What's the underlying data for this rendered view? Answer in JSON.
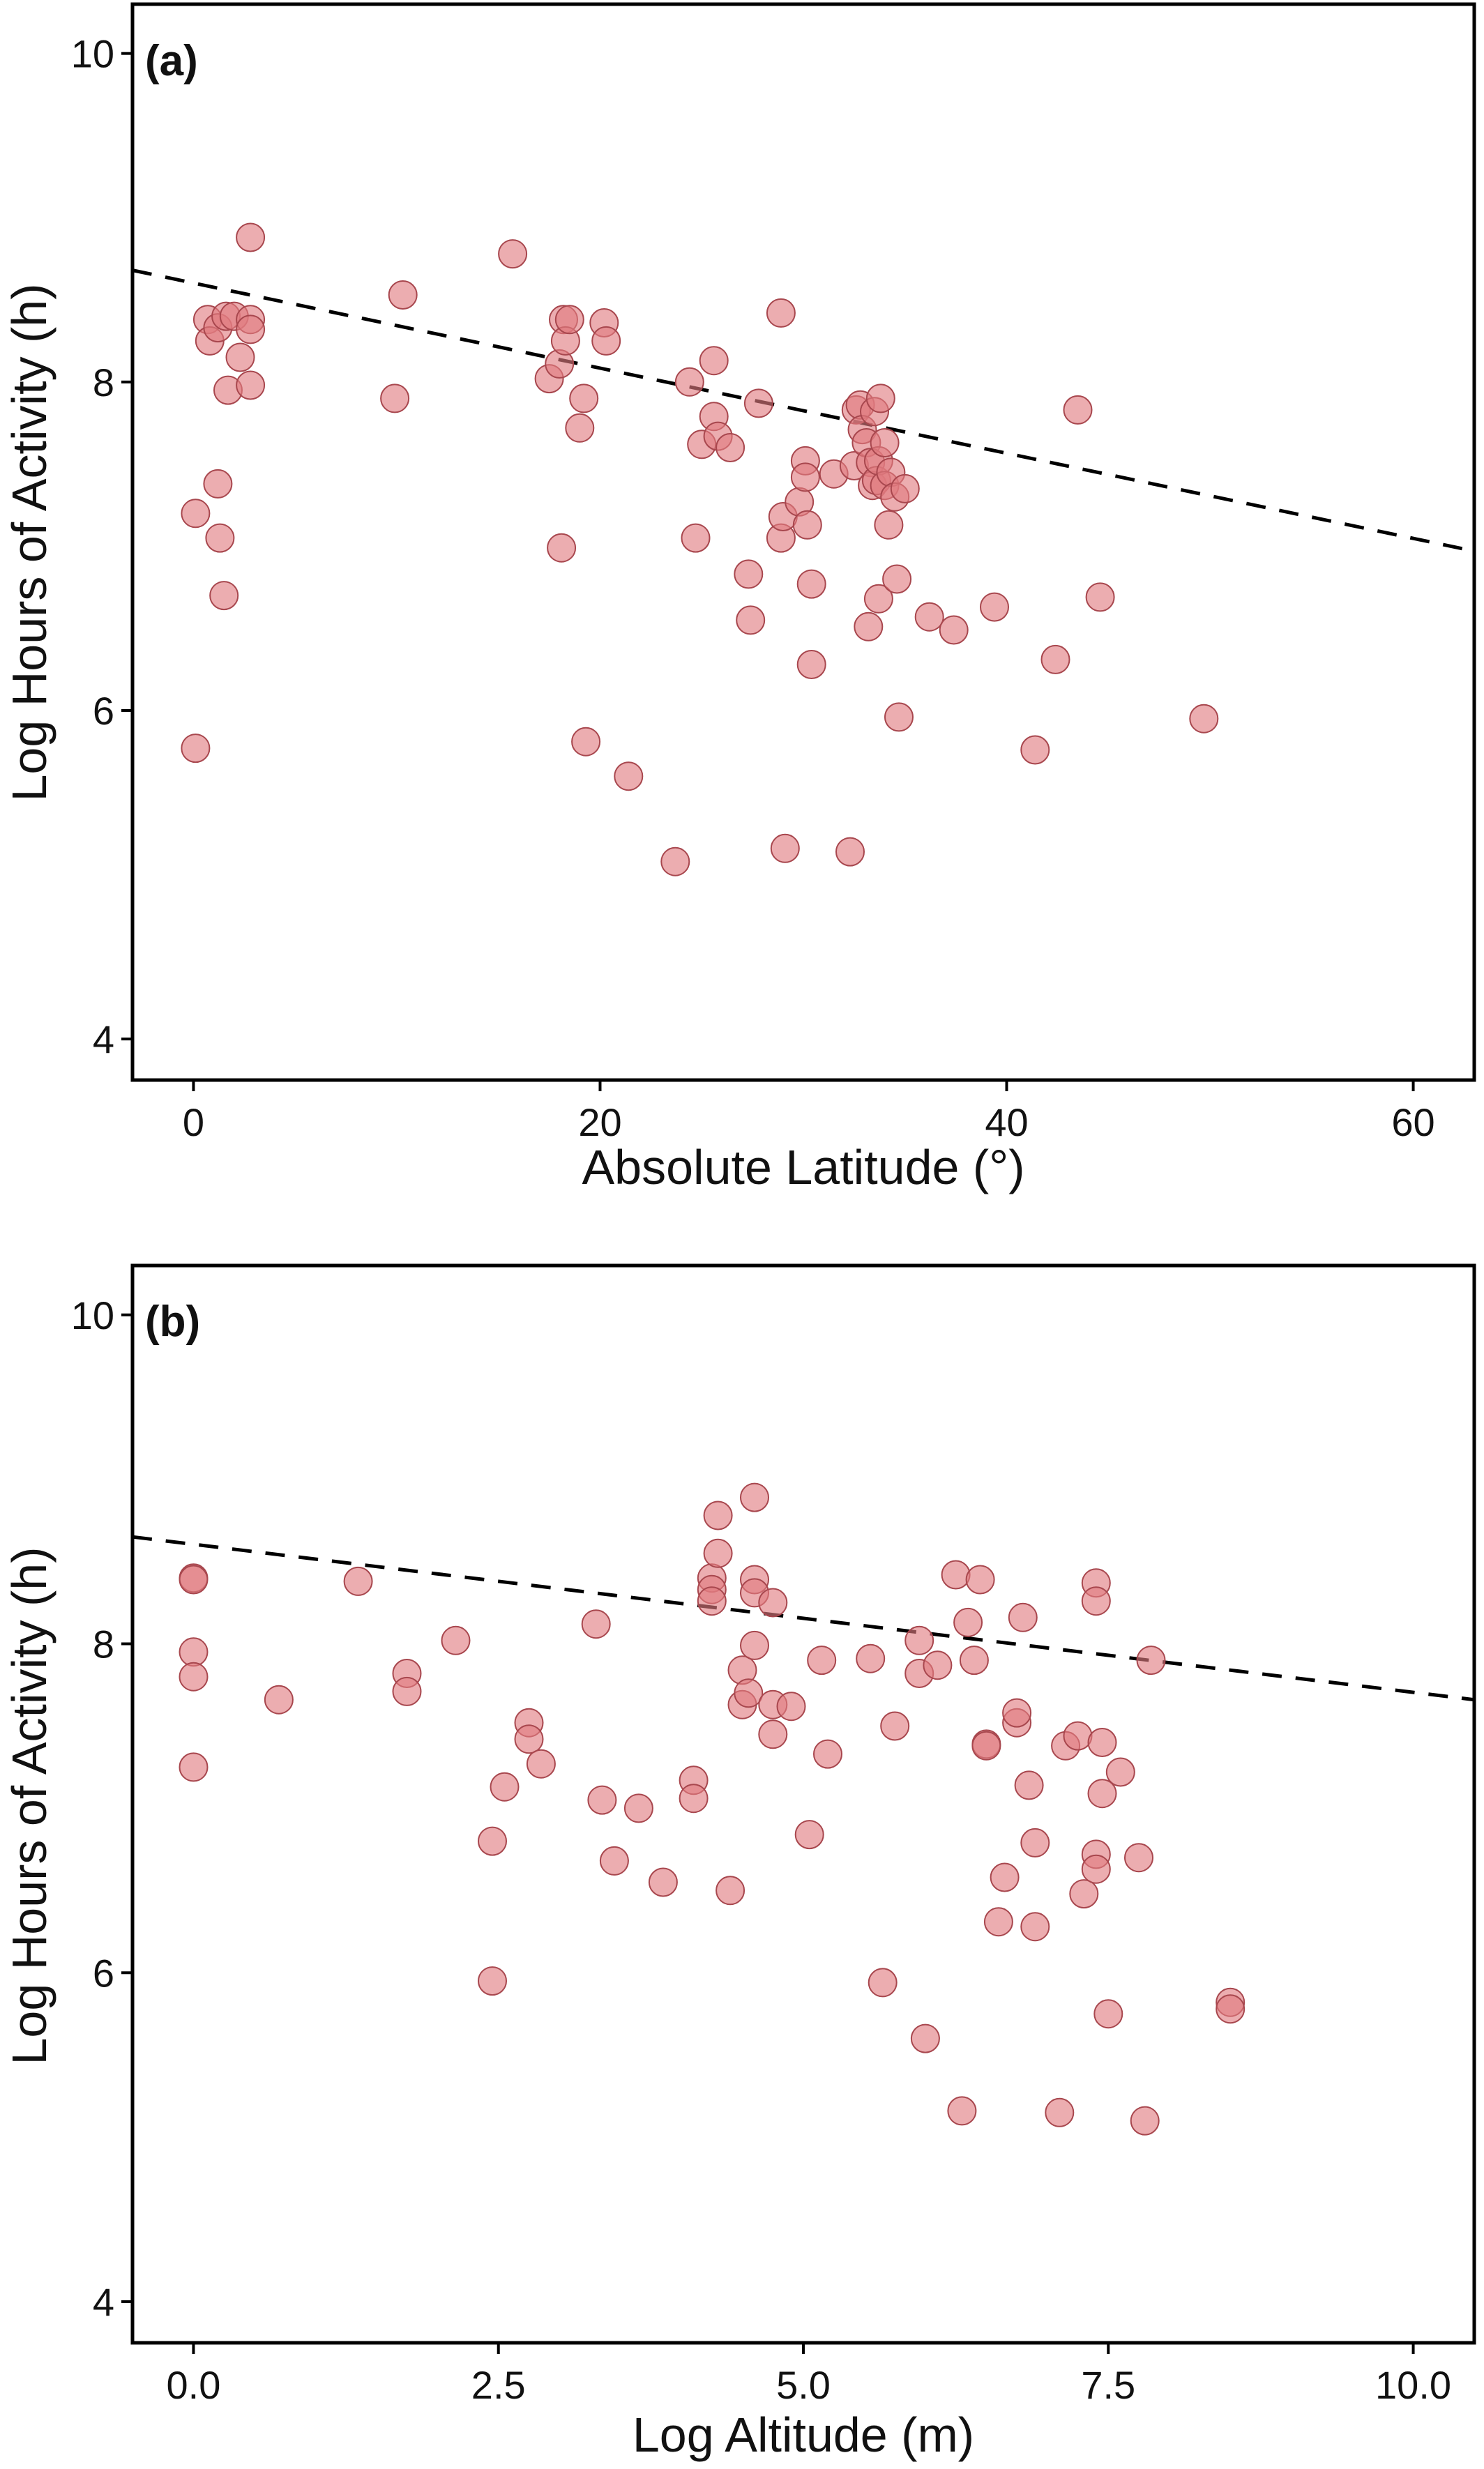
{
  "colors": {
    "point_fill": "#e07a80",
    "point_stroke": "#a8474e",
    "point_fill_opacity": 0.62,
    "trend": "#000000",
    "frame": "#000000"
  },
  "chart_data": [
    {
      "type": "scatter",
      "panel_label": "(a)",
      "title": "",
      "xlabel": "Absolute Latitude (°)",
      "ylabel": "Log Hours of Activity (h)",
      "xlim": [
        -3,
        63
      ],
      "ylim": [
        3.75,
        10.3
      ],
      "xticks": [
        0,
        20,
        40,
        60
      ],
      "xtick_labels": [
        "0",
        "20",
        "40",
        "60"
      ],
      "yticks": [
        4,
        6,
        8,
        10
      ],
      "ytick_labels": [
        "4",
        "6",
        "8",
        "10"
      ],
      "grid": false,
      "legend": "none",
      "trendline": {
        "style": "dashed",
        "x": [
          -3,
          63
        ],
        "y": [
          8.68,
          6.97
        ]
      },
      "points": [
        [
          0.1,
          7.2
        ],
        [
          0.1,
          5.77
        ],
        [
          0.7,
          8.38
        ],
        [
          0.8,
          8.25
        ],
        [
          1.2,
          8.33
        ],
        [
          1.2,
          7.38
        ],
        [
          1.3,
          7.05
        ],
        [
          1.5,
          6.7
        ],
        [
          1.6,
          8.4
        ],
        [
          1.7,
          7.95
        ],
        [
          2.0,
          8.4
        ],
        [
          2.3,
          8.15
        ],
        [
          2.8,
          8.88
        ],
        [
          2.8,
          8.38
        ],
        [
          2.8,
          8.32
        ],
        [
          2.8,
          7.98
        ],
        [
          9.9,
          7.9
        ],
        [
          10.3,
          8.53
        ],
        [
          15.7,
          8.78
        ],
        [
          17.5,
          8.02
        ],
        [
          18.0,
          8.11
        ],
        [
          18.1,
          6.99
        ],
        [
          18.2,
          8.38
        ],
        [
          18.3,
          8.25
        ],
        [
          18.5,
          8.38
        ],
        [
          19.0,
          7.72
        ],
        [
          19.2,
          7.9
        ],
        [
          19.3,
          5.81
        ],
        [
          20.2,
          8.36
        ],
        [
          20.3,
          8.25
        ],
        [
          21.4,
          5.6
        ],
        [
          23.7,
          5.08
        ],
        [
          24.4,
          8.0
        ],
        [
          24.7,
          7.05
        ],
        [
          25.0,
          7.62
        ],
        [
          25.6,
          8.13
        ],
        [
          25.6,
          7.79
        ],
        [
          25.8,
          7.67
        ],
        [
          26.4,
          7.6
        ],
        [
          27.3,
          6.83
        ],
        [
          27.4,
          6.55
        ],
        [
          27.8,
          7.87
        ],
        [
          28.9,
          8.42
        ],
        [
          28.9,
          7.05
        ],
        [
          29.0,
          7.18
        ],
        [
          29.1,
          5.16
        ],
        [
          29.8,
          7.27
        ],
        [
          30.1,
          7.52
        ],
        [
          30.1,
          7.42
        ],
        [
          30.2,
          7.13
        ],
        [
          30.4,
          6.77
        ],
        [
          30.4,
          6.28
        ],
        [
          31.5,
          7.44
        ],
        [
          32.3,
          5.14
        ],
        [
          32.5,
          7.49
        ],
        [
          32.6,
          7.83
        ],
        [
          32.8,
          7.86
        ],
        [
          32.9,
          7.71
        ],
        [
          33.1,
          7.63
        ],
        [
          33.2,
          6.51
        ],
        [
          33.3,
          7.51
        ],
        [
          33.4,
          7.37
        ],
        [
          33.5,
          7.82
        ],
        [
          33.6,
          7.4
        ],
        [
          33.7,
          7.52
        ],
        [
          33.7,
          6.68
        ],
        [
          33.8,
          7.9
        ],
        [
          34.0,
          7.37
        ],
        [
          34.0,
          7.63
        ],
        [
          34.2,
          7.13
        ],
        [
          34.3,
          7.45
        ],
        [
          34.5,
          7.3
        ],
        [
          34.6,
          6.8
        ],
        [
          34.7,
          5.96
        ],
        [
          35.0,
          7.35
        ],
        [
          36.2,
          6.57
        ],
        [
          37.4,
          6.49
        ],
        [
          39.4,
          6.63
        ],
        [
          41.4,
          5.76
        ],
        [
          42.4,
          6.31
        ],
        [
          43.5,
          7.83
        ],
        [
          44.6,
          6.69
        ],
        [
          49.7,
          5.95
        ]
      ]
    },
    {
      "type": "scatter",
      "panel_label": "(b)",
      "title": "",
      "xlabel": "Log Altitude (m)",
      "ylabel": "Log Hours of Activity (h)",
      "xlim": [
        -0.5,
        10.5
      ],
      "ylim": [
        3.75,
        10.3
      ],
      "xticks": [
        0,
        2.5,
        5,
        7.5,
        10
      ],
      "xtick_labels": [
        "0.0",
        "2.5",
        "5.0",
        "7.5",
        "10.0"
      ],
      "yticks": [
        4,
        6,
        8,
        10
      ],
      "ytick_labels": [
        "4",
        "6",
        "8",
        "10"
      ],
      "grid": false,
      "legend": "none",
      "trendline": {
        "style": "dashed",
        "x": [
          -0.5,
          10.5
        ],
        "y": [
          8.65,
          7.66
        ]
      },
      "points": [
        [
          0.0,
          8.4
        ],
        [
          0.0,
          8.39
        ],
        [
          0.0,
          7.95
        ],
        [
          0.0,
          7.8
        ],
        [
          0.0,
          7.25
        ],
        [
          0.7,
          7.66
        ],
        [
          1.35,
          8.38
        ],
        [
          1.75,
          7.82
        ],
        [
          1.75,
          7.71
        ],
        [
          2.15,
          8.02
        ],
        [
          2.45,
          6.8
        ],
        [
          2.45,
          5.95
        ],
        [
          2.55,
          7.13
        ],
        [
          2.75,
          7.52
        ],
        [
          2.75,
          7.42
        ],
        [
          2.85,
          7.27
        ],
        [
          3.3,
          8.12
        ],
        [
          3.35,
          7.05
        ],
        [
          3.45,
          6.68
        ],
        [
          3.65,
          7.0
        ],
        [
          3.85,
          6.55
        ],
        [
          4.1,
          7.17
        ],
        [
          4.1,
          7.06
        ],
        [
          4.25,
          8.4
        ],
        [
          4.25,
          8.33
        ],
        [
          4.25,
          8.26
        ],
        [
          4.3,
          8.78
        ],
        [
          4.3,
          8.55
        ],
        [
          4.4,
          6.5
        ],
        [
          4.5,
          7.84
        ],
        [
          4.5,
          7.63
        ],
        [
          4.55,
          7.7
        ],
        [
          4.6,
          8.89
        ],
        [
          4.6,
          8.39
        ],
        [
          4.6,
          8.31
        ],
        [
          4.6,
          7.99
        ],
        [
          4.75,
          8.25
        ],
        [
          4.75,
          7.63
        ],
        [
          4.75,
          7.45
        ],
        [
          4.9,
          7.62
        ],
        [
          5.05,
          6.84
        ],
        [
          5.15,
          7.9
        ],
        [
          5.2,
          7.33
        ],
        [
          5.55,
          7.91
        ],
        [
          5.65,
          5.94
        ],
        [
          5.75,
          7.5
        ],
        [
          5.95,
          7.82
        ],
        [
          5.95,
          8.02
        ],
        [
          6.0,
          5.6
        ],
        [
          6.1,
          7.87
        ],
        [
          6.25,
          8.42
        ],
        [
          6.3,
          5.16
        ],
        [
          6.35,
          8.13
        ],
        [
          6.4,
          7.9
        ],
        [
          6.45,
          8.39
        ],
        [
          6.5,
          7.39
        ],
        [
          6.5,
          7.38
        ],
        [
          6.6,
          6.31
        ],
        [
          6.65,
          6.58
        ],
        [
          6.75,
          7.52
        ],
        [
          6.75,
          7.58
        ],
        [
          6.8,
          8.16
        ],
        [
          6.85,
          7.14
        ],
        [
          6.9,
          6.79
        ],
        [
          6.9,
          6.28
        ],
        [
          7.1,
          5.15
        ],
        [
          7.15,
          7.38
        ],
        [
          7.25,
          7.44
        ],
        [
          7.3,
          6.48
        ],
        [
          7.4,
          8.37
        ],
        [
          7.4,
          8.26
        ],
        [
          7.4,
          6.72
        ],
        [
          7.4,
          6.63
        ],
        [
          7.45,
          7.4
        ],
        [
          7.45,
          7.09
        ],
        [
          7.5,
          5.75
        ],
        [
          7.6,
          7.22
        ],
        [
          7.75,
          6.7
        ],
        [
          7.8,
          5.1
        ],
        [
          7.85,
          7.9
        ],
        [
          8.5,
          5.82
        ],
        [
          8.5,
          5.78
        ]
      ]
    }
  ]
}
